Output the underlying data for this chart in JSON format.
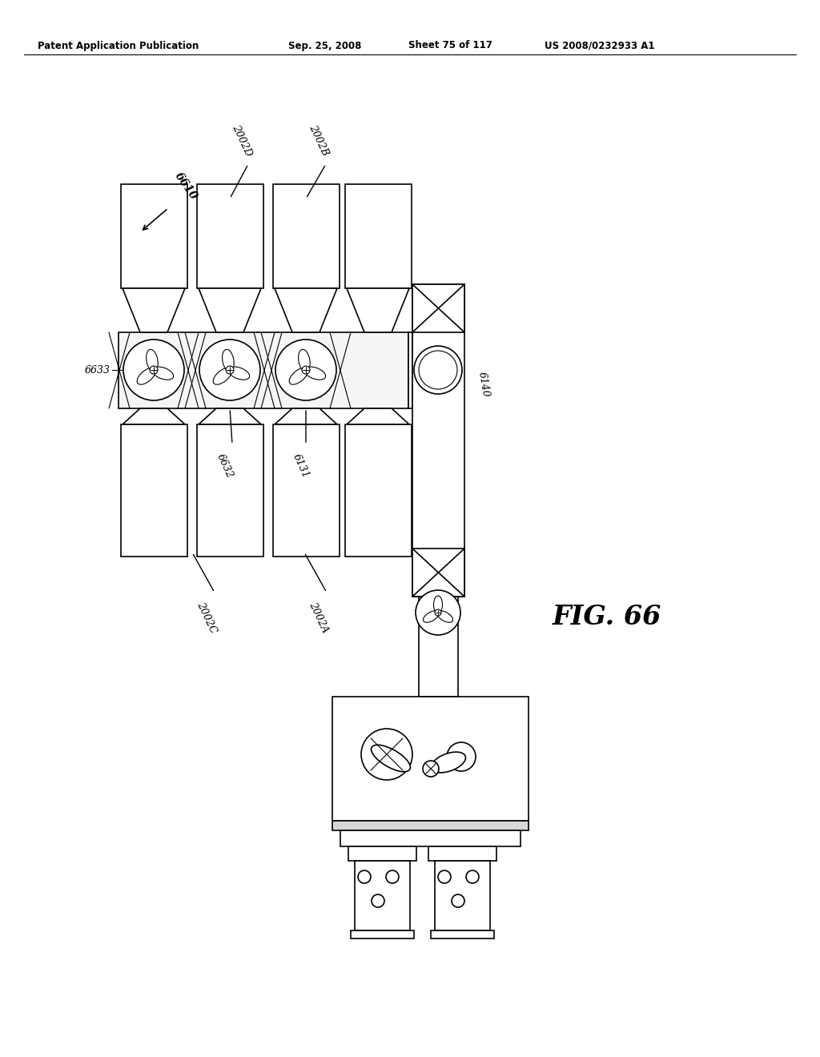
{
  "bg_color": "#ffffff",
  "line_color": "#000000",
  "header_text": "Patent Application Publication",
  "header_date": "Sep. 25, 2008",
  "header_sheet": "Sheet 75 of 117",
  "header_patent": "US 2008/0232933 A1",
  "fig_label": "FIG. 66",
  "ref_6610": "6610",
  "ref_2002D": "2002D",
  "ref_2002B": "2002B",
  "ref_6633": "6633",
  "ref_6632": "6632",
  "ref_6131": "6131",
  "ref_6140": "6140",
  "ref_2002C": "2002C",
  "ref_2002A": "2002A"
}
